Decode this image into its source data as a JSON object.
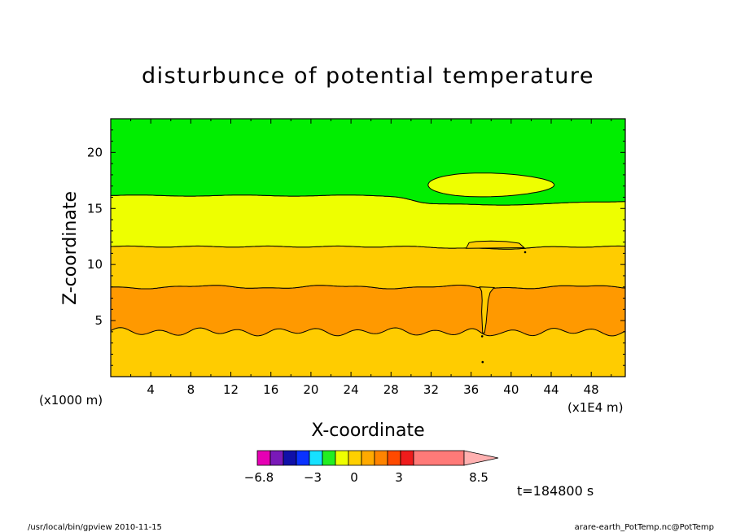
{
  "chart_data": {
    "type": "contour",
    "title": "disturbunce of potential temperature",
    "xlabel": "X-coordinate",
    "ylabel": "Z-coordinate",
    "x_scale_note": "(x1E4 m)",
    "y_scale_note": "(x1000 m)",
    "xlim": [
      0,
      51.4
    ],
    "ylim": [
      0,
      23
    ],
    "x_ticks": [
      4,
      8,
      12,
      16,
      20,
      24,
      28,
      32,
      36,
      40,
      44,
      48
    ],
    "y_ticks": [
      5,
      10,
      15,
      20
    ],
    "colors": {
      "level_0_3": "#ffcc00",
      "level_3_4": "#ff9900",
      "level_4_5": "#ffcc00",
      "level_5_6": "#eeff00",
      "level_6_7": "#00ee00",
      "plot_bg": "#ffcc00"
    },
    "bands": [
      {
        "fill": "#ff9900",
        "lower_z": 4.0,
        "upper_z": 8.0
      },
      {
        "fill": "#ffcc00",
        "lower_z": 8.0,
        "upper_z": 11.6
      },
      {
        "fill": "#eeff00",
        "lower_z": 11.6,
        "upper_z": 16.0
      },
      {
        "fill": "#00ee00",
        "lower_z": 16.0,
        "upper_z": 23.0
      }
    ],
    "colorbar": {
      "colors": [
        "#e600b4",
        "#7a19b8",
        "#1010a8",
        "#0a32ff",
        "#16e1ff",
        "#22ee22",
        "#eeff00",
        "#ffd000",
        "#ffaa00",
        "#ff8400",
        "#ff4a00",
        "#ee1c1c",
        "#ff7a78",
        "#ffb0b0"
      ],
      "tick_labels": [
        "−6.8",
        "−3",
        "0",
        "3",
        "8.5"
      ]
    },
    "time_label": "t=184800 s"
  },
  "footer": {
    "left": "/usr/local/bin/gpview  2010-11-15",
    "right": "arare-earth_PotTemp.nc@PotTemp"
  }
}
